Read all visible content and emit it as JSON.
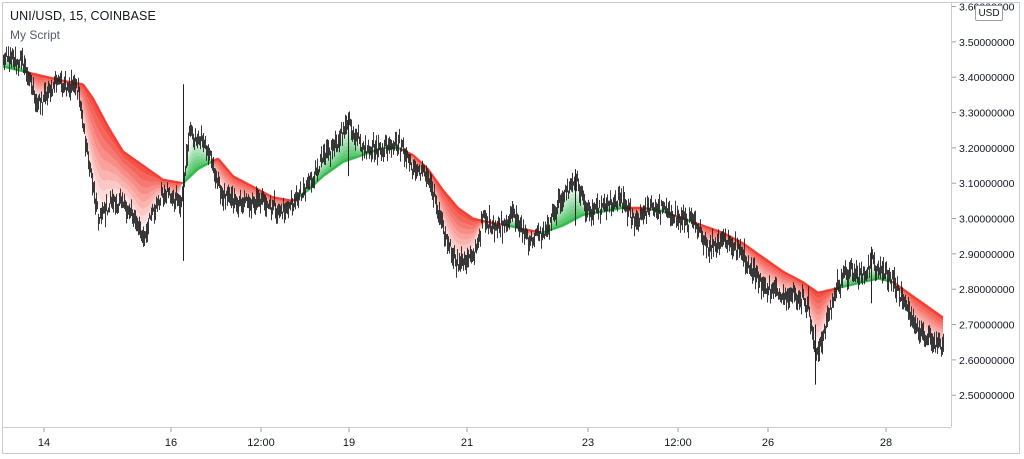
{
  "header": {
    "title": "UNI/USD, 15, COINBASE",
    "script_name": "My Script"
  },
  "currency_badge": "USD",
  "colors": {
    "bull": "#2db84a",
    "bear": "#f23a2e",
    "candle": "#222222",
    "grid": "#e0e3eb",
    "axis_text": "#131722"
  },
  "chart_data": {
    "type": "line",
    "ylim": [
      2.41,
      3.61
    ],
    "y_ticks": [
      "3.60000000",
      "3.50000000",
      "3.40000000",
      "3.30000000",
      "3.20000000",
      "3.10000000",
      "3.00000000",
      "2.90000000",
      "2.80000000",
      "2.70000000",
      "2.60000000",
      "2.50000000"
    ],
    "x_ticks": [
      "14",
      "16",
      "12:00",
      "19",
      "21",
      "23",
      "12:00",
      "26",
      "28"
    ],
    "grid": false,
    "price_keypoints": [
      [
        0,
        3.45
      ],
      [
        20,
        3.44
      ],
      [
        35,
        3.32
      ],
      [
        55,
        3.39
      ],
      [
        75,
        3.37
      ],
      [
        82,
        3.22
      ],
      [
        95,
        3.0
      ],
      [
        110,
        3.05
      ],
      [
        125,
        3.03
      ],
      [
        140,
        2.95
      ],
      [
        160,
        3.08
      ],
      [
        178,
        3.04
      ],
      [
        186,
        3.24
      ],
      [
        200,
        3.22
      ],
      [
        210,
        3.15
      ],
      [
        220,
        3.06
      ],
      [
        240,
        3.04
      ],
      [
        260,
        3.05
      ],
      [
        280,
        3.02
      ],
      [
        300,
        3.07
      ],
      [
        315,
        3.15
      ],
      [
        330,
        3.2
      ],
      [
        345,
        3.27
      ],
      [
        360,
        3.2
      ],
      [
        380,
        3.2
      ],
      [
        395,
        3.22
      ],
      [
        410,
        3.14
      ],
      [
        425,
        3.12
      ],
      [
        440,
        2.96
      ],
      [
        455,
        2.87
      ],
      [
        470,
        2.89
      ],
      [
        480,
        3.0
      ],
      [
        495,
        2.97
      ],
      [
        510,
        3.01
      ],
      [
        525,
        2.94
      ],
      [
        545,
        2.97
      ],
      [
        555,
        3.04
      ],
      [
        572,
        3.11
      ],
      [
        585,
        3.01
      ],
      [
        600,
        3.03
      ],
      [
        618,
        3.05
      ],
      [
        632,
        2.99
      ],
      [
        645,
        3.03
      ],
      [
        660,
        3.03
      ],
      [
        675,
        3.0
      ],
      [
        690,
        2.99
      ],
      [
        705,
        2.92
      ],
      [
        720,
        2.94
      ],
      [
        740,
        2.9
      ],
      [
        760,
        2.81
      ],
      [
        780,
        2.79
      ],
      [
        795,
        2.78
      ],
      [
        805,
        2.76
      ],
      [
        812,
        2.61
      ],
      [
        820,
        2.67
      ],
      [
        835,
        2.82
      ],
      [
        848,
        2.85
      ],
      [
        860,
        2.84
      ],
      [
        870,
        2.88
      ],
      [
        880,
        2.85
      ],
      [
        890,
        2.83
      ],
      [
        900,
        2.76
      ],
      [
        915,
        2.68
      ],
      [
        925,
        2.66
      ],
      [
        940,
        2.63
      ]
    ],
    "band_keypoints": [
      [
        0,
        3.43
      ],
      [
        30,
        3.41
      ],
      [
        60,
        3.39
      ],
      [
        80,
        3.38
      ],
      [
        90,
        3.34
      ],
      [
        105,
        3.26
      ],
      [
        120,
        3.19
      ],
      [
        140,
        3.15
      ],
      [
        160,
        3.11
      ],
      [
        180,
        3.1
      ],
      [
        195,
        3.14
      ],
      [
        215,
        3.17
      ],
      [
        230,
        3.12
      ],
      [
        250,
        3.09
      ],
      [
        270,
        3.06
      ],
      [
        290,
        3.05
      ],
      [
        305,
        3.08
      ],
      [
        320,
        3.12
      ],
      [
        340,
        3.16
      ],
      [
        360,
        3.18
      ],
      [
        380,
        3.2
      ],
      [
        395,
        3.2
      ],
      [
        410,
        3.18
      ],
      [
        425,
        3.14
      ],
      [
        440,
        3.08
      ],
      [
        455,
        3.03
      ],
      [
        470,
        3.0
      ],
      [
        485,
        2.99
      ],
      [
        505,
        2.98
      ],
      [
        520,
        2.97
      ],
      [
        540,
        2.96
      ],
      [
        560,
        2.98
      ],
      [
        580,
        3.01
      ],
      [
        600,
        3.02
      ],
      [
        620,
        3.03
      ],
      [
        640,
        3.03
      ],
      [
        660,
        3.02
      ],
      [
        680,
        3.0
      ],
      [
        700,
        2.98
      ],
      [
        720,
        2.96
      ],
      [
        740,
        2.93
      ],
      [
        760,
        2.89
      ],
      [
        780,
        2.85
      ],
      [
        800,
        2.82
      ],
      [
        815,
        2.79
      ],
      [
        830,
        2.8
      ],
      [
        845,
        2.81
      ],
      [
        860,
        2.82
      ],
      [
        875,
        2.83
      ],
      [
        890,
        2.82
      ],
      [
        905,
        2.79
      ],
      [
        920,
        2.76
      ],
      [
        940,
        2.72
      ]
    ],
    "wicks": [
      [
        180,
        2.88,
        3.38
      ],
      [
        345,
        3.12,
        3.29
      ],
      [
        572,
        2.98,
        3.14
      ],
      [
        812,
        2.53,
        2.7
      ],
      [
        868,
        2.76,
        2.92
      ]
    ]
  }
}
